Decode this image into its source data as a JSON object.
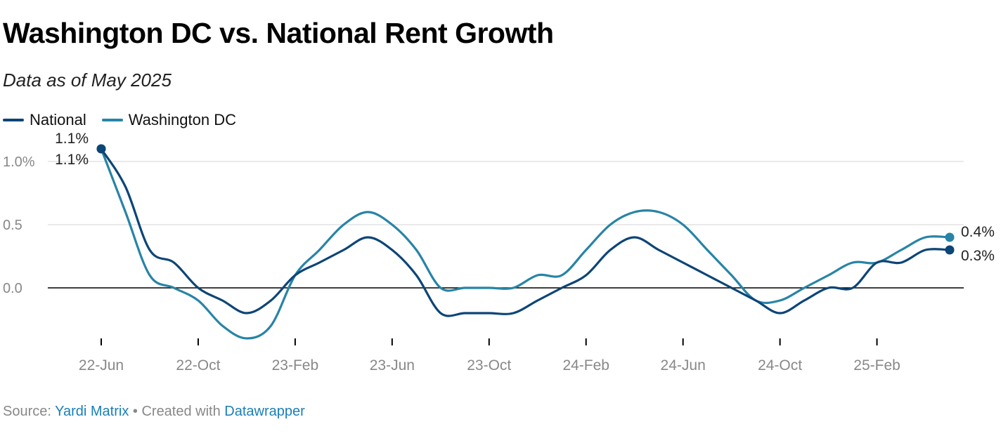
{
  "title": "Washington DC vs. National Rent Growth",
  "subtitle": "Data as of May 2025",
  "footer": {
    "source_prefix": "Source: ",
    "source_name": "Yardi Matrix",
    "separator": " • Created with ",
    "tool_name": "Datawrapper"
  },
  "colors": {
    "national": "#0c4577",
    "washington": "#2784a6",
    "zero_line": "#000000",
    "grid": "#e4e4e4",
    "tick_label": "#888888",
    "end_label": "#222222"
  },
  "chart_data": {
    "type": "line",
    "title": "Washington DC vs. National Rent Growth",
    "subtitle": "Data as of May 2025",
    "xlabel": "",
    "ylabel": "",
    "ylim": [
      -0.45,
      1.1
    ],
    "y_ticks": [
      {
        "value": 1.0,
        "label": "1.0%"
      },
      {
        "value": 0.5,
        "label": "0.5"
      },
      {
        "value": 0.0,
        "label": "0.0"
      }
    ],
    "x_ticks": [
      {
        "index": 0,
        "label": "22-Jun"
      },
      {
        "index": 4,
        "label": "22-Oct"
      },
      {
        "index": 8,
        "label": "23-Feb"
      },
      {
        "index": 12,
        "label": "23-Jun"
      },
      {
        "index": 16,
        "label": "23-Oct"
      },
      {
        "index": 20,
        "label": "24-Feb"
      },
      {
        "index": 24,
        "label": "24-Jun"
      },
      {
        "index": 28,
        "label": "24-Oct"
      },
      {
        "index": 32,
        "label": "25-Feb"
      }
    ],
    "x": [
      "22-Jun",
      "22-Jul",
      "22-Aug",
      "22-Sep",
      "22-Oct",
      "22-Nov",
      "22-Dec",
      "23-Jan",
      "23-Feb",
      "23-Mar",
      "23-Apr",
      "23-May",
      "23-Jun",
      "23-Jul",
      "23-Aug",
      "23-Sep",
      "23-Oct",
      "23-Nov",
      "23-Dec",
      "24-Jan",
      "24-Feb",
      "24-Mar",
      "24-Apr",
      "24-May",
      "24-Jun",
      "24-Jul",
      "24-Aug",
      "24-Sep",
      "24-Oct",
      "24-Nov",
      "24-Dec",
      "25-Jan",
      "25-Feb",
      "25-Mar",
      "25-Apr",
      "25-May"
    ],
    "legend_position": "top-left",
    "grid": true,
    "series": [
      {
        "name": "National",
        "color": "#0c4577",
        "values": [
          1.1,
          0.8,
          0.3,
          0.2,
          0.0,
          -0.1,
          -0.2,
          -0.1,
          0.1,
          0.2,
          0.3,
          0.4,
          0.3,
          0.1,
          -0.2,
          -0.2,
          -0.2,
          -0.2,
          -0.1,
          0.0,
          0.1,
          0.3,
          0.4,
          0.3,
          0.2,
          0.1,
          0.0,
          -0.1,
          -0.2,
          -0.1,
          0.0,
          0.0,
          0.2,
          0.2,
          0.3,
          0.3
        ],
        "end_label": "0.3%",
        "start_label": "1.1%"
      },
      {
        "name": "Washington DC",
        "color": "#2784a6",
        "values": [
          1.1,
          0.6,
          0.1,
          0.0,
          -0.1,
          -0.3,
          -0.4,
          -0.3,
          0.1,
          0.3,
          0.5,
          0.6,
          0.5,
          0.3,
          0.0,
          0.0,
          0.0,
          0.0,
          0.1,
          0.1,
          0.3,
          0.5,
          0.6,
          0.6,
          0.5,
          0.3,
          0.1,
          -0.1,
          -0.1,
          0.0,
          0.1,
          0.2,
          0.2,
          0.3,
          0.4,
          0.4
        ],
        "end_label": "0.4%",
        "start_label": "1.1%"
      }
    ]
  }
}
